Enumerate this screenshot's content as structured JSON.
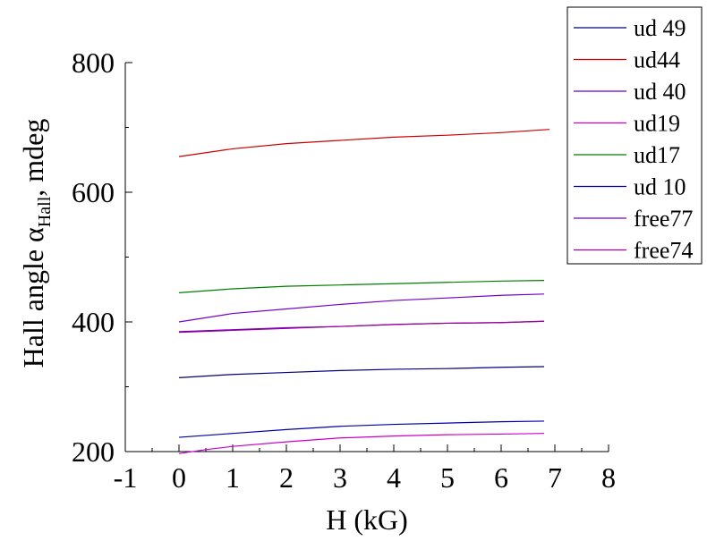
{
  "chart_data": {
    "type": "line",
    "title": "",
    "xlabel": "H (kG)",
    "ylabel": {
      "main": "Hall angle α",
      "sub": "Hall",
      "tail": ", mdeg"
    },
    "xlim": [
      -1,
      8
    ],
    "ylim": [
      200,
      800
    ],
    "xticks": [
      "-1",
      "0",
      "1",
      "2",
      "3",
      "4",
      "5",
      "6",
      "7",
      "8"
    ],
    "yticks": [
      "200",
      "400",
      "600",
      "800"
    ],
    "grid": false,
    "legend_position": "top-right",
    "series": [
      {
        "name": "ud 49",
        "color": "#000080",
        "x": [
          0,
          1,
          2,
          3,
          4,
          5,
          6,
          6.8
        ],
        "y": [
          314,
          319,
          322,
          325,
          327,
          328,
          330,
          331
        ]
      },
      {
        "name": "ud44",
        "color": "#cc0000",
        "x": [
          0,
          1,
          2,
          3,
          4,
          5,
          6,
          6.9
        ],
        "y": [
          655,
          667,
          675,
          680,
          685,
          688,
          692,
          697
        ]
      },
      {
        "name": "ud 40",
        "color": "#6600cc",
        "x": [
          0,
          1,
          2,
          3,
          4,
          5,
          6,
          6.8
        ],
        "y": [
          385,
          388,
          391,
          393,
          396,
          398,
          399,
          401
        ]
      },
      {
        "name": "ud19",
        "color": "#cc00cc",
        "x": [
          0,
          0.5,
          1,
          2,
          3,
          4,
          5,
          6,
          6.8
        ],
        "y": [
          197,
          203,
          208,
          215,
          221,
          224,
          226,
          227,
          228
        ]
      },
      {
        "name": "ud17",
        "color": "#007f00",
        "x": [
          0,
          1,
          2,
          3,
          4,
          5,
          6,
          6.8
        ],
        "y": [
          445,
          451,
          455,
          457,
          459,
          461,
          463,
          464
        ]
      },
      {
        "name": "ud 10",
        "color": "#0000aa",
        "x": [
          0,
          1,
          2,
          3,
          4,
          5,
          6,
          6.8
        ],
        "y": [
          222,
          228,
          234,
          239,
          242,
          244,
          246,
          247
        ]
      },
      {
        "name": "free77",
        "color": "#7700cc",
        "x": [
          0,
          1,
          2,
          3,
          4,
          5,
          6,
          6.8
        ],
        "y": [
          400,
          413,
          420,
          427,
          433,
          437,
          441,
          443
        ]
      },
      {
        "name": "free74",
        "color": "#990099",
        "x": [
          0,
          1,
          2,
          3,
          4,
          5,
          6,
          6.8
        ],
        "y": [
          384,
          387,
          390,
          393,
          396,
          398,
          399,
          401
        ]
      }
    ]
  }
}
